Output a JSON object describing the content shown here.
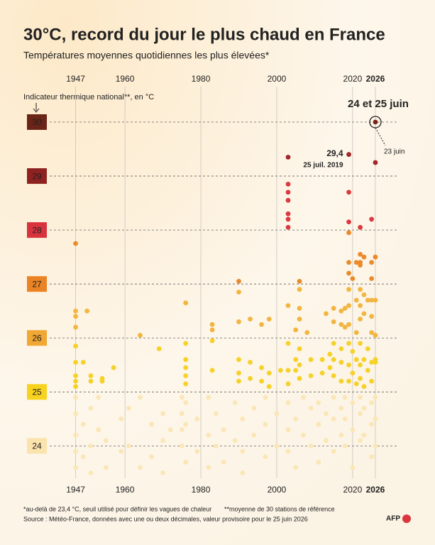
{
  "chart_data": {
    "type": "scatter",
    "title": "30°C, record du jour le plus chaud en France",
    "subtitle": "Températures moyennes quotidiennes les plus élevées*",
    "y_label": "Indicateur thermique national**, en °C",
    "xlim": [
      1942.4,
      2031.8
    ],
    "xticks": [
      1947,
      1960,
      1980,
      2000,
      2020,
      2026
    ],
    "ylim": [
      23.4,
      30.5
    ],
    "yticks": [
      24,
      25,
      26,
      27,
      28,
      29,
      30
    ],
    "ytick_colors": [
      "#fbe3ad",
      "#f7d31f",
      "#f1a733",
      "#ea8324",
      "#d8323d",
      "#8e2220",
      "#6a2418"
    ],
    "grid": true,
    "series": [
      {
        "color": "#7a2418",
        "x": [
          2026
        ],
        "values": [
          30.0
        ]
      },
      {
        "color": "#a3262a",
        "x": [
          2003,
          2019,
          2026
        ],
        "values": [
          29.35,
          29.4,
          29.25
        ]
      },
      {
        "color": "#d93a3f",
        "x": [
          2003,
          2003,
          2003,
          2003,
          2003,
          2003,
          2019,
          2019,
          2022,
          2025
        ],
        "values": [
          28.85,
          28.7,
          28.55,
          28.3,
          28.2,
          28.05,
          28.7,
          28.15,
          28.05,
          28.2
        ]
      },
      {
        "color": "#ea8a2b",
        "x": [
          1947,
          1990,
          2006,
          2019,
          2019,
          2019,
          2020,
          2021,
          2022,
          2022,
          2022,
          2023,
          2025,
          2025,
          2026
        ],
        "values": [
          27.75,
          27.05,
          27.05,
          27.95,
          27.4,
          27.2,
          27.1,
          27.4,
          27.55,
          27.4,
          27.35,
          27.5,
          27.4,
          27.1,
          27.5
        ]
      },
      {
        "color": "#f2b540",
        "x": [
          1947,
          1947,
          1947,
          1950,
          1964,
          1976,
          1983,
          1983,
          1990,
          1990,
          1993,
          1996,
          1998,
          2003,
          2005,
          2006,
          2006,
          2006,
          2008,
          2013,
          2015,
          2015,
          2017,
          2017,
          2018,
          2018,
          2019,
          2019,
          2019,
          2021,
          2021,
          2022,
          2022,
          2022,
          2023,
          2023,
          2024,
          2025,
          2025,
          2025,
          2026,
          2026
        ],
        "values": [
          26.5,
          26.4,
          26.2,
          26.5,
          26.05,
          26.65,
          26.25,
          26.15,
          26.85,
          26.3,
          26.35,
          26.25,
          26.35,
          26.6,
          26.15,
          26.9,
          26.55,
          26.35,
          26.1,
          26.45,
          26.55,
          26.3,
          26.5,
          26.25,
          26.55,
          26.2,
          26.9,
          26.6,
          26.25,
          26.7,
          26.1,
          26.9,
          26.6,
          26.35,
          26.8,
          26.45,
          26.7,
          26.7,
          26.4,
          26.1,
          26.7,
          26.05
        ]
      },
      {
        "color": "#f6d128",
        "x": [
          1947,
          1947,
          1947,
          1947,
          1947,
          1949,
          1951,
          1951,
          1954,
          1954,
          1957,
          1969,
          1976,
          1976,
          1976,
          1976,
          1976,
          1983,
          1983,
          1990,
          1990,
          1990,
          1993,
          1993,
          1996,
          1996,
          1998,
          1998,
          2001,
          2003,
          2003,
          2003,
          2005,
          2005,
          2006,
          2006,
          2006,
          2009,
          2009,
          2012,
          2012,
          2014,
          2014,
          2015,
          2015,
          2015,
          2017,
          2017,
          2017,
          2019,
          2019,
          2019,
          2020,
          2020,
          2021,
          2021,
          2022,
          2022,
          2022,
          2023,
          2023,
          2024,
          2024,
          2025,
          2025,
          2026,
          2026
        ],
        "values": [
          25.85,
          25.55,
          25.3,
          25.2,
          25.1,
          25.55,
          25.3,
          25.2,
          25.2,
          25.25,
          25.45,
          25.8,
          25.9,
          25.6,
          25.45,
          25.3,
          25.15,
          25.95,
          25.4,
          25.6,
          25.35,
          25.2,
          25.55,
          25.25,
          25.45,
          25.2,
          25.35,
          25.1,
          25.4,
          25.9,
          25.4,
          25.15,
          25.4,
          25.6,
          25.8,
          25.5,
          25.25,
          25.6,
          25.3,
          25.6,
          25.35,
          25.7,
          25.45,
          25.9,
          25.6,
          25.3,
          25.8,
          25.55,
          25.2,
          25.9,
          25.5,
          25.2,
          25.75,
          25.35,
          25.6,
          25.15,
          25.9,
          25.5,
          25.25,
          25.6,
          25.1,
          25.8,
          25.4,
          25.55,
          25.2,
          25.6,
          25.55
        ]
      },
      {
        "color": "#fbe6b6",
        "x": [
          1947,
          1947,
          1947,
          1947,
          1947,
          1949,
          1949,
          1951,
          1951,
          1951,
          1953,
          1953,
          1955,
          1955,
          1959,
          1959,
          1961,
          1961,
          1964,
          1964,
          1967,
          1967,
          1970,
          1970,
          1970,
          1972,
          1975,
          1975,
          1975,
          1975,
          1976,
          1976,
          1976,
          1979,
          1979,
          1982,
          1982,
          1982,
          1984,
          1984,
          1986,
          1986,
          1989,
          1989,
          1991,
          1991,
          1991,
          1994,
          1994,
          1997,
          1997,
          1997,
          2000,
          2000,
          2003,
          2003,
          2003,
          2005,
          2005,
          2007,
          2007,
          2009,
          2009,
          2011,
          2011,
          2011,
          2013,
          2013,
          2015,
          2015,
          2015,
          2017,
          2017,
          2018,
          2018,
          2018,
          2020,
          2020,
          2020,
          2022,
          2022,
          2022,
          2023,
          2023,
          2025,
          2025,
          2025,
          2026,
          2026,
          2026
        ],
        "values": [
          24.9,
          24.6,
          24.2,
          23.9,
          23.6,
          24.4,
          23.8,
          24.7,
          24.0,
          23.5,
          24.9,
          24.3,
          24.1,
          23.6,
          24.5,
          23.9,
          24.7,
          24.0,
          24.9,
          23.6,
          24.4,
          23.8,
          24.6,
          24.1,
          23.5,
          24.3,
          24.9,
          24.6,
          24.3,
          24.0,
          24.8,
          24.4,
          23.7,
          24.5,
          23.9,
          24.9,
          24.2,
          23.6,
          24.6,
          24.0,
          24.3,
          23.7,
          24.8,
          24.1,
          24.5,
          23.9,
          23.5,
          24.7,
          24.2,
          24.9,
          24.4,
          23.8,
          24.6,
          24.0,
          24.8,
          24.3,
          23.9,
          24.5,
          23.6,
          24.9,
          24.2,
          24.7,
          24.0,
          24.8,
          24.4,
          23.7,
          24.6,
          24.1,
          24.9,
          24.5,
          23.9,
          24.7,
          24.2,
          24.9,
          24.5,
          24.0,
          24.8,
          24.3,
          23.6,
          24.9,
          24.6,
          24.1,
          24.7,
          24.2,
          24.8,
          24.4,
          23.8,
          24.9,
          24.5,
          24.0
        ]
      }
    ],
    "annotations": [
      "24 et 25 juin",
      "23 juin",
      "29,4",
      "25 juil. 2019"
    ],
    "notes": [
      "*au-delà de 23,4 °C, seuil utilisé pour définir les vagues de chaleur",
      "**moyenne de 30 stations de référence",
      "Source : Météo-France, données avec une ou deux décimales, valeur provisoire pour le 25 juin 2026"
    ],
    "logo": "AFP"
  }
}
